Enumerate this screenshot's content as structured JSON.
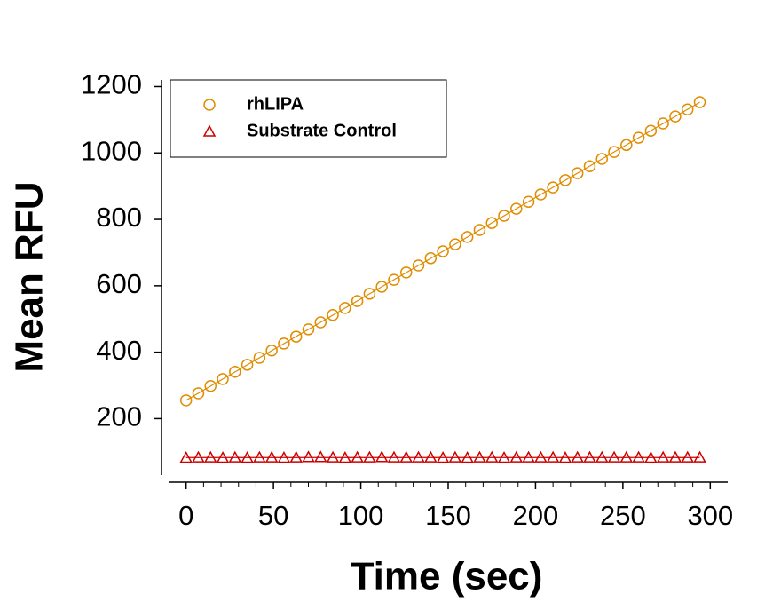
{
  "chart_data": {
    "type": "scatter",
    "xlabel": "Time (sec)",
    "ylabel": "Mean RFU",
    "xlim": [
      -10,
      310
    ],
    "ylim": [
      30,
      1220
    ],
    "xticks": [
      0,
      50,
      100,
      150,
      200,
      250,
      300
    ],
    "yticks": [
      200,
      400,
      600,
      800,
      1000,
      1200
    ],
    "legend": "upper left",
    "x": [
      0,
      7,
      14,
      21,
      28,
      35,
      42,
      49,
      56,
      63,
      70,
      77,
      84,
      91,
      98,
      105,
      112,
      119,
      126,
      133,
      140,
      147,
      154,
      161,
      168,
      175,
      182,
      189,
      196,
      203,
      210,
      217,
      224,
      231,
      238,
      245,
      252,
      259,
      266,
      273,
      280,
      287,
      294
    ],
    "series": [
      {
        "name": "rhLIPA",
        "color": "#e08c00",
        "marker": "circle",
        "values": [
          255,
          276,
          298,
          319,
          341,
          362,
          383,
          405,
          426,
          447,
          469,
          490,
          512,
          533,
          554,
          576,
          597,
          618,
          640,
          661,
          683,
          704,
          725,
          747,
          768,
          789,
          811,
          832,
          853,
          875,
          896,
          918,
          939,
          960,
          982,
          1003,
          1024,
          1046,
          1067,
          1089,
          1110,
          1131,
          1153
        ]
      },
      {
        "name": "Substrate Control",
        "color": "#cc0000",
        "marker": "triangle",
        "values": [
          82,
          83,
          83,
          82,
          83,
          82,
          83,
          83,
          82,
          83,
          84,
          84,
          83,
          82,
          83,
          83,
          84,
          83,
          83,
          83,
          83,
          82,
          83,
          82,
          83,
          83,
          82,
          83,
          83,
          83,
          83,
          82,
          83,
          83,
          83,
          83,
          83,
          83,
          82,
          83,
          83,
          83,
          83
        ]
      }
    ]
  }
}
